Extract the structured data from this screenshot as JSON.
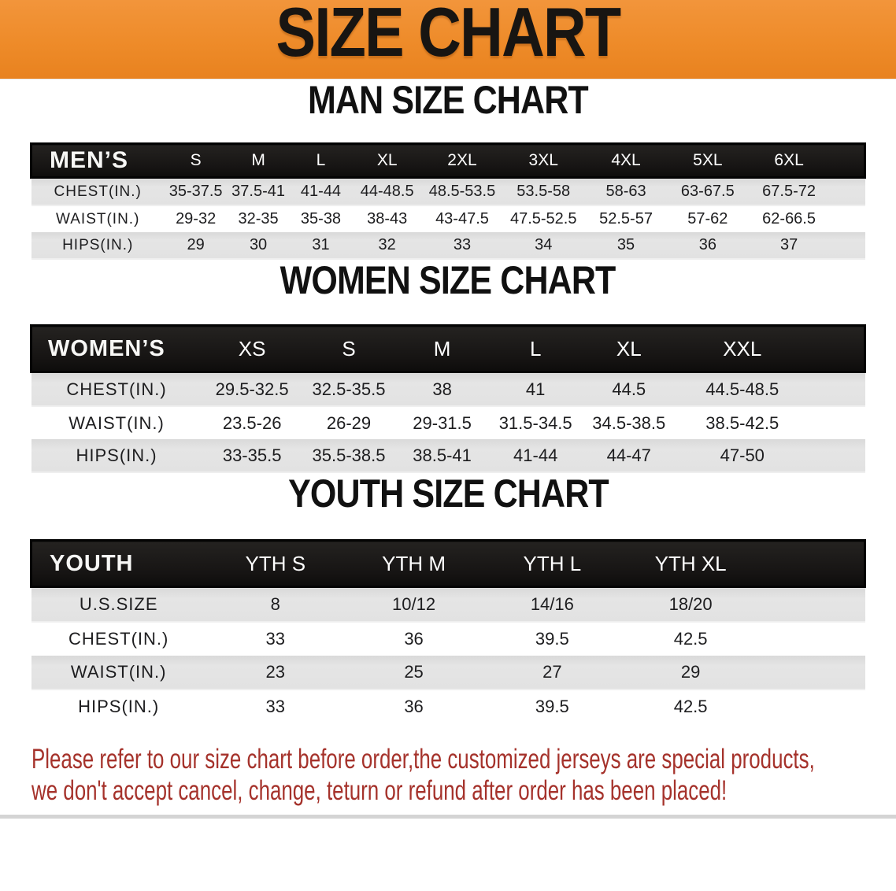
{
  "banner": {
    "title": "SIZE CHART",
    "bg_color": "#ee8b29",
    "text_color": "#181512"
  },
  "sections": [
    {
      "heading": "MAN SIZE CHART",
      "table": {
        "header_label": "MEN’S",
        "columns": [
          "S",
          "M",
          "L",
          "XL",
          "2XL",
          "3XL",
          "4XL",
          "5XL",
          "6XL"
        ],
        "rows": [
          {
            "label": "CHEST(IN.)",
            "values": [
              "35-37.5",
              "37.5-41",
              "41-44",
              "44-48.5",
              "48.5-53.5",
              "53.5-58",
              "58-63",
              "63-67.5",
              "67.5-72"
            ]
          },
          {
            "label": "WAIST(IN.)",
            "values": [
              "29-32",
              "32-35",
              "35-38",
              "38-43",
              "43-47.5",
              "47.5-52.5",
              "52.5-57",
              "57-62",
              "62-66.5"
            ]
          },
          {
            "label": "HIPS(IN.)",
            "values": [
              "29",
              "30",
              "31",
              "32",
              "33",
              "34",
              "35",
              "36",
              "37"
            ]
          }
        ]
      }
    },
    {
      "heading": "WOMEN SIZE CHART",
      "table": {
        "header_label": "WOMEN’S",
        "columns": [
          "XS",
          "S",
          "M",
          "L",
          "XL",
          "XXL"
        ],
        "rows": [
          {
            "label": "CHEST(IN.)",
            "values": [
              "29.5-32.5",
              "32.5-35.5",
              "38",
              "41",
              "44.5",
              "44.5-48.5"
            ]
          },
          {
            "label": "WAIST(IN.)",
            "values": [
              "23.5-26",
              "26-29",
              "29-31.5",
              "31.5-34.5",
              "34.5-38.5",
              "38.5-42.5"
            ]
          },
          {
            "label": "HIPS(IN.)",
            "values": [
              "33-35.5",
              "35.5-38.5",
              "38.5-41",
              "41-44",
              "44-47",
              "47-50"
            ]
          }
        ]
      }
    },
    {
      "heading": "YOUTH SIZE CHART",
      "table": {
        "header_label": "YOUTH",
        "columns": [
          "YTH S",
          "YTH M",
          "YTH L",
          "YTH XL"
        ],
        "rows": [
          {
            "label": "U.S.SIZE",
            "values": [
              "8",
              "10/12",
              "14/16",
              "18/20"
            ]
          },
          {
            "label": "CHEST(IN.)",
            "values": [
              "33",
              "36",
              "39.5",
              "42.5"
            ]
          },
          {
            "label": "WAIST(IN.)",
            "values": [
              "23",
              "25",
              "27",
              "29"
            ]
          },
          {
            "label": "HIPS(IN.)",
            "values": [
              "33",
              "36",
              "39.5",
              "42.5"
            ]
          }
        ]
      }
    }
  ],
  "disclaimer": {
    "color": "#a5322b",
    "lines": [
      "Please refer to our size chart before order,the customized jerseys are special products,",
      "we don't accept cancel, change, teturn or refund after order has been placed!"
    ]
  }
}
